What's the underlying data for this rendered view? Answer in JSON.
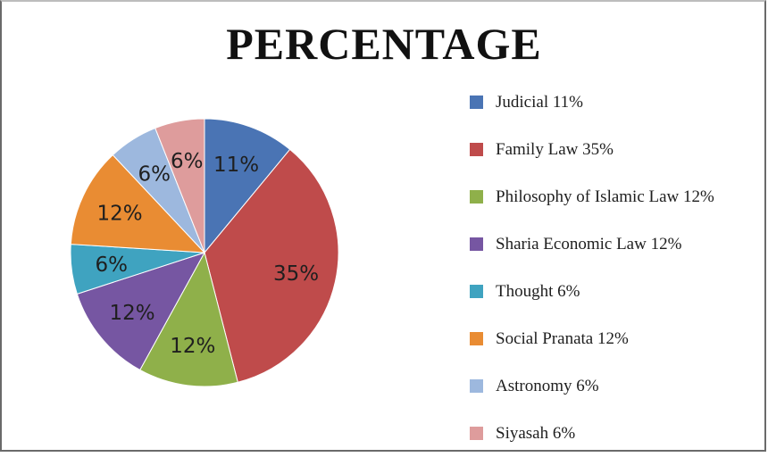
{
  "chart_data": {
    "type": "pie",
    "title": "PERCENTAGE",
    "legend_placement": "right",
    "slices": [
      {
        "name": "Judicial",
        "value": 11,
        "label": "11%",
        "legend": "Judicial 11%",
        "color": "#4a74b4"
      },
      {
        "name": "Family Law",
        "value": 35,
        "label": "35%",
        "legend": "Family Law 35%",
        "color": "#bf4b4b"
      },
      {
        "name": "Philosophy of Islamic Law",
        "value": 12,
        "label": "12%",
        "legend": "Philosophy of Islamic Law 12%",
        "color": "#8fb04a"
      },
      {
        "name": "Sharia Economic Law",
        "value": 12,
        "label": "12%",
        "legend": "Sharia Economic Law 12%",
        "color": "#7656a2"
      },
      {
        "name": "Thought",
        "value": 6,
        "label": "6%",
        "legend": "Thought 6%",
        "color": "#3fa3c0"
      },
      {
        "name": "Social Pranata",
        "value": 12,
        "label": "12%",
        "legend": "Social Pranata 12%",
        "color": "#e98c33"
      },
      {
        "name": "Astronomy",
        "value": 6,
        "label": "6%",
        "legend": "Astronomy 6%",
        "color": "#9db8de"
      },
      {
        "name": "Siyasah",
        "value": 6,
        "label": "6%",
        "legend": "Siyasah 6%",
        "color": "#de9c9c"
      }
    ]
  }
}
